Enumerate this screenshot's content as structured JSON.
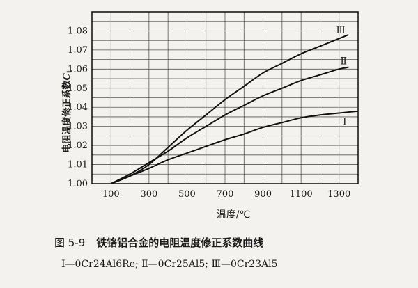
{
  "caption": {
    "figure_number": "图 5-9",
    "title": "铁铬铝合金的电阻温度修正系数曲线"
  },
  "legend_text": "Ⅰ—0Cr24Al6Re; Ⅱ—0Cr25Al5; Ⅲ—0Cr23Al5",
  "chart_data": {
    "type": "line",
    "xlabel": "温度/℃",
    "ylabel_prefix": "电阻温度修正系数",
    "ylabel_symbol": "C",
    "ylabel_subscript": "t",
    "xlim": [
      0,
      1400
    ],
    "ylim": [
      1.0,
      1.09
    ],
    "x_ticks": [
      100,
      300,
      500,
      700,
      900,
      1100,
      1300
    ],
    "y_ticks": [
      1.0,
      1.01,
      1.02,
      1.03,
      1.04,
      1.05,
      1.06,
      1.07,
      1.08
    ],
    "grid": true,
    "series": [
      {
        "name": "Ⅰ",
        "x": [
          100,
          200,
          300,
          400,
          500,
          600,
          700,
          800,
          900,
          1000,
          1100,
          1200,
          1300,
          1400
        ],
        "y": [
          1.0,
          1.004,
          1.008,
          1.0125,
          1.016,
          1.0195,
          1.023,
          1.026,
          1.0295,
          1.032,
          1.0345,
          1.036,
          1.037,
          1.038
        ]
      },
      {
        "name": "Ⅱ",
        "x": [
          100,
          200,
          300,
          400,
          500,
          600,
          700,
          800,
          900,
          1000,
          1100,
          1200,
          1300,
          1350
        ],
        "y": [
          1.0,
          1.005,
          1.011,
          1.017,
          1.024,
          1.03,
          1.036,
          1.041,
          1.046,
          1.05,
          1.054,
          1.057,
          1.06,
          1.061
        ]
      },
      {
        "name": "Ⅲ",
        "x": [
          100,
          200,
          300,
          400,
          500,
          600,
          700,
          800,
          900,
          1000,
          1100,
          1200,
          1300,
          1350
        ],
        "y": [
          1.0,
          1.004,
          1.01,
          1.019,
          1.028,
          1.036,
          1.044,
          1.051,
          1.058,
          1.063,
          1.068,
          1.072,
          1.076,
          1.078
        ]
      }
    ]
  }
}
